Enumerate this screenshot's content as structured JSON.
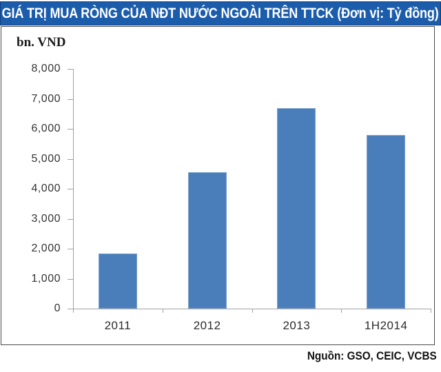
{
  "chart_data": {
    "type": "bar",
    "title": "GIÁ TRỊ MUA RÒNG CỦA NĐT NƯỚC NGOÀI TRÊN TTCK (Đơn vị: Tỷ đồng)",
    "ylabel": "bn. VND",
    "categories": [
      "2011",
      "2012",
      "2013",
      "1H2014"
    ],
    "values": [
      1850,
      4550,
      6700,
      5800
    ],
    "ylim": [
      0,
      8000
    ],
    "ytick_step": 1000,
    "ytick_labels": [
      "0",
      "1,000",
      "2,000",
      "3,000",
      "4,000",
      "5,000",
      "6,000",
      "7,000",
      "8,000"
    ],
    "grid": false,
    "legend": "none",
    "bar_color": "#4A7EBA",
    "axis_color": "#A0A0A0",
    "title_bar_color": "#1B5CAB",
    "title_text_color": "#FFFFFF"
  },
  "footer": {
    "source": "Nguồn: GSO, CEIC, VCBS"
  }
}
